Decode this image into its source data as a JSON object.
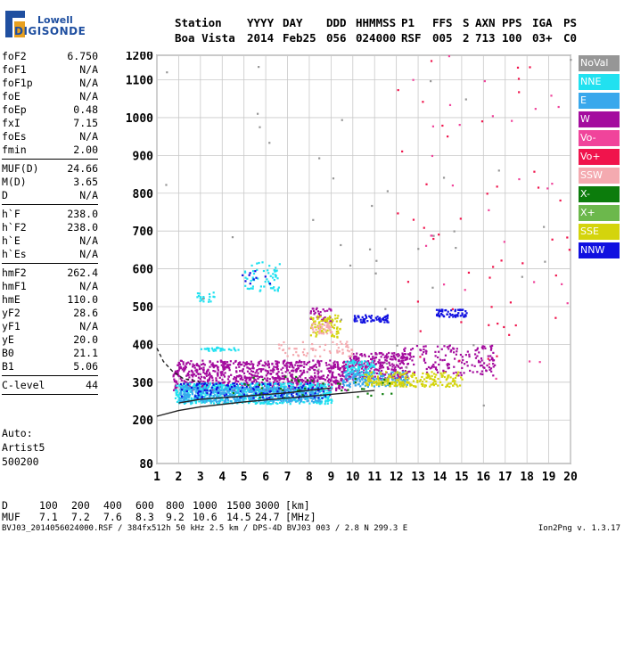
{
  "logo": {
    "line1": "Lowell",
    "line2": "DIGISONDE"
  },
  "header": {
    "labels": [
      "Station",
      "YYYY",
      "DAY",
      "DDD",
      "HHMMSS",
      "P1",
      "FFS",
      "S",
      "AXN",
      "PPS",
      "IGA",
      "PS"
    ],
    "values": [
      "Boa Vista",
      "2014",
      "Feb25",
      "056",
      "024000",
      "RSF",
      "005",
      "2",
      "713",
      "100",
      "03+",
      "C0"
    ]
  },
  "params": [
    {
      "k": "foF2",
      "v": "6.750"
    },
    {
      "k": "foF1",
      "v": "N/A"
    },
    {
      "k": "foF1p",
      "v": "N/A"
    },
    {
      "k": "foE",
      "v": "N/A"
    },
    {
      "k": "foEp",
      "v": "0.48"
    },
    {
      "k": "fxI",
      "v": "7.15"
    },
    {
      "k": "foEs",
      "v": "N/A"
    },
    {
      "k": "fmin",
      "v": "2.00",
      "sep": true
    },
    {
      "k": "MUF(D)",
      "v": "24.66"
    },
    {
      "k": "M(D)",
      "v": "3.65"
    },
    {
      "k": "D",
      "v": "N/A",
      "sep": true
    },
    {
      "k": "h`F",
      "v": "238.0"
    },
    {
      "k": "h`F2",
      "v": "238.0"
    },
    {
      "k": "h`E",
      "v": "N/A"
    },
    {
      "k": "h`Es",
      "v": "N/A",
      "sep": true
    },
    {
      "k": "hmF2",
      "v": "262.4"
    },
    {
      "k": "hmF1",
      "v": "N/A"
    },
    {
      "k": "hmE",
      "v": "110.0"
    },
    {
      "k": "yF2",
      "v": "28.6"
    },
    {
      "k": "yF1",
      "v": "N/A"
    },
    {
      "k": "yE",
      "v": "20.0"
    },
    {
      "k": "B0",
      "v": "21.1"
    },
    {
      "k": "B1",
      "v": "5.06",
      "sep": true
    },
    {
      "k": "C-level",
      "v": "44",
      "sep": true
    }
  ],
  "auto": [
    "Auto:",
    "Artist5",
    "500200"
  ],
  "legend": [
    {
      "label": "NoVal",
      "color": "#969696"
    },
    {
      "label": "NNE",
      "color": "#21e1f0"
    },
    {
      "label": "E",
      "color": "#39a8ec"
    },
    {
      "label": "W",
      "color": "#a40c9e"
    },
    {
      "label": "Vo-",
      "color": "#f0449b"
    },
    {
      "label": "Vo+",
      "color": "#f0144c"
    },
    {
      "label": "SSW",
      "color": "#f4aab0"
    },
    {
      "label": "X-",
      "color": "#0c7c0c"
    },
    {
      "label": "X+",
      "color": "#6cb84c"
    },
    {
      "label": "SSE",
      "color": "#d4d40c"
    },
    {
      "label": "NNW",
      "color": "#1010e0"
    }
  ],
  "bottom": {
    "d_label": "D",
    "d_values": [
      "100",
      "200",
      "400",
      "600",
      "800",
      "1000",
      "1500",
      "3000",
      "[km]"
    ],
    "muf_label": "MUF",
    "muf_values": [
      "7.1",
      "7.2",
      "7.6",
      "8.3",
      "9.2",
      "10.6",
      "14.5",
      "24.7",
      "[MHz]"
    ]
  },
  "footer": {
    "left": "BVJ03_2014056024000.RSF / 384fx512h 50 kHz 2.5 km / DPS-4D BVJ03 003 / 2.8 N 299.3 E",
    "right": "Ion2Png v. 1.3.17"
  },
  "chart_data": {
    "type": "scatter",
    "title": "",
    "xlabel": "",
    "ylabel": "",
    "xlim": [
      1,
      20
    ],
    "ylim": [
      80,
      1200
    ],
    "x_ticks": [
      1,
      2,
      3,
      4,
      5,
      6,
      7,
      8,
      9,
      10,
      11,
      12,
      13,
      14,
      15,
      16,
      17,
      18,
      19,
      20
    ],
    "y_ticks": [
      80,
      200,
      300,
      400,
      500,
      600,
      700,
      800,
      900,
      1000,
      1100,
      1200
    ],
    "grid": true,
    "legend_position": "right",
    "series": [
      {
        "name": "W",
        "color": "#a40c9e",
        "regions": [
          {
            "x": [
              1.7,
              9.8
            ],
            "y": [
              280,
              360
            ],
            "n": 900
          },
          {
            "x": [
              9.8,
              12.5
            ],
            "y": [
              310,
              380
            ],
            "n": 260
          },
          {
            "x": [
              12.2,
              16.5
            ],
            "y": [
              320,
              400
            ],
            "n": 160
          },
          {
            "x": [
              8.0,
              9.0
            ],
            "y": [
              460,
              500
            ],
            "n": 40
          }
        ]
      },
      {
        "name": "NNE",
        "color": "#21e1f0",
        "regions": [
          {
            "x": [
              1.8,
              9.0
            ],
            "y": [
              245,
              300
            ],
            "n": 700
          },
          {
            "x": [
              5.0,
              6.6
            ],
            "y": [
              540,
              620
            ],
            "n": 60
          },
          {
            "x": [
              2.8,
              3.6
            ],
            "y": [
              515,
              540
            ],
            "n": 20
          },
          {
            "x": [
              3.0,
              4.8
            ],
            "y": [
              385,
              395
            ],
            "n": 30
          },
          {
            "x": [
              9.6,
              11.0
            ],
            "y": [
              320,
              360
            ],
            "n": 80
          }
        ]
      },
      {
        "name": "E",
        "color": "#39a8ec",
        "regions": [
          {
            "x": [
              2.0,
              8.5
            ],
            "y": [
              250,
              290
            ],
            "n": 500
          },
          {
            "x": [
              9.5,
              12.5
            ],
            "y": [
              290,
              330
            ],
            "n": 160
          }
        ]
      },
      {
        "name": "NNW",
        "color": "#1010e0",
        "regions": [
          {
            "x": [
              10.0,
              11.6
            ],
            "y": [
              460,
              480
            ],
            "n": 60
          },
          {
            "x": [
              13.8,
              15.2
            ],
            "y": [
              475,
              495
            ],
            "n": 60
          },
          {
            "x": [
              2.0,
              9.0
            ],
            "y": [
              260,
              300
            ],
            "n": 120
          },
          {
            "x": [
              4.5,
              6.5
            ],
            "y": [
              560,
              600
            ],
            "n": 10
          }
        ]
      },
      {
        "name": "SSE",
        "color": "#d4d40c",
        "regions": [
          {
            "x": [
              8.0,
              9.4
            ],
            "y": [
              420,
              480
            ],
            "n": 80
          },
          {
            "x": [
              10.5,
              15.0
            ],
            "y": [
              290,
              330
            ],
            "n": 220
          }
        ]
      },
      {
        "name": "SSW",
        "color": "#f4aab0",
        "regions": [
          {
            "x": [
              8.0,
              9.0
            ],
            "y": [
              430,
              460
            ],
            "n": 40
          },
          {
            "x": [
              6.5,
              10.0
            ],
            "y": [
              370,
              410
            ],
            "n": 60
          }
        ]
      },
      {
        "name": "Vo+",
        "color": "#f0144c",
        "regions": [
          {
            "x": [
              12.0,
              20.0
            ],
            "y": [
              300,
              1200
            ],
            "n": 50
          }
        ]
      },
      {
        "name": "Vo-",
        "color": "#f0449b",
        "regions": [
          {
            "x": [
              12.0,
              20.0
            ],
            "y": [
              300,
              1200
            ],
            "n": 30
          }
        ]
      },
      {
        "name": "X-",
        "color": "#0c7c0c",
        "regions": [
          {
            "x": [
              4.0,
              12.0
            ],
            "y": [
              260,
              320
            ],
            "n": 40
          }
        ]
      },
      {
        "name": "NoVal",
        "color": "#969696",
        "regions": [
          {
            "x": [
              1.2,
              20.0
            ],
            "y": [
              200,
              1200
            ],
            "n": 40
          }
        ]
      }
    ],
    "lines": [
      {
        "name": "dashed",
        "style": "dashed",
        "points": [
          [
            1.0,
            390
          ],
          [
            1.3,
            355
          ],
          [
            1.7,
            330
          ],
          [
            2.2,
            310
          ],
          [
            3.0,
            300
          ]
        ]
      },
      {
        "name": "solid-1",
        "style": "solid",
        "points": [
          [
            1.0,
            210
          ],
          [
            2.0,
            225
          ],
          [
            3.0,
            235
          ],
          [
            5.0,
            248
          ],
          [
            7.0,
            258
          ],
          [
            9.0,
            268
          ],
          [
            11.0,
            278
          ]
        ]
      },
      {
        "name": "solid-2",
        "style": "solid",
        "points": [
          [
            2.0,
            245
          ],
          [
            3.0,
            255
          ],
          [
            5.0,
            263
          ],
          [
            7.0,
            272
          ],
          [
            9.0,
            285
          ]
        ]
      }
    ]
  }
}
